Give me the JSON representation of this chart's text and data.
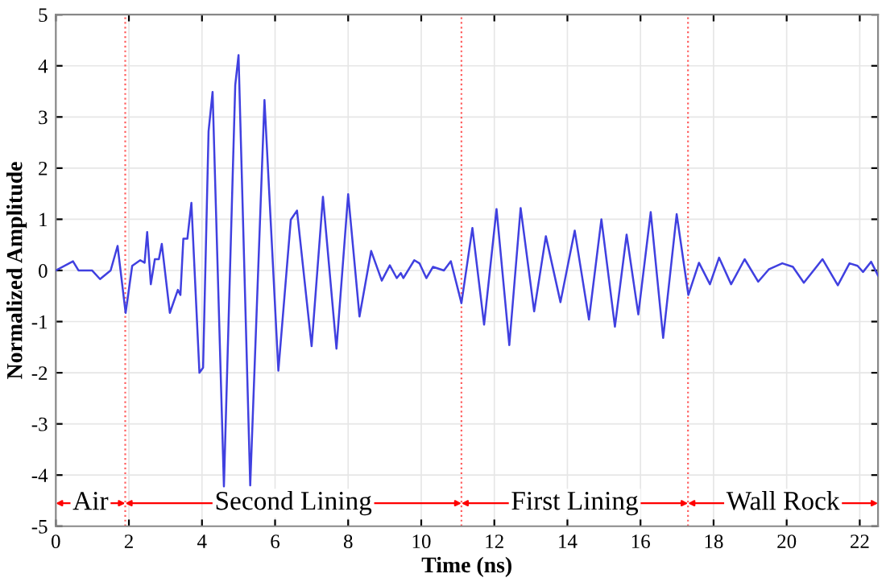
{
  "chart_data": {
    "type": "line",
    "xlabel": "Time (ns)",
    "ylabel": "Normalized Amplitude",
    "xlim": [
      0,
      22.5
    ],
    "ylim": [
      -5,
      5
    ],
    "xticks": [
      0,
      2,
      4,
      6,
      8,
      10,
      12,
      14,
      16,
      18,
      20,
      22
    ],
    "yticks": [
      -5,
      -4,
      -3,
      -2,
      -1,
      0,
      1,
      2,
      3,
      4,
      5
    ],
    "grid": true,
    "marker": "none",
    "line_style": "solid",
    "series": [
      {
        "color": "#4040e0",
        "x": [
          0,
          0.47,
          0.62,
          0.99,
          1.21,
          1.5,
          1.69,
          1.91,
          2.09,
          2.31,
          2.43,
          2.5,
          2.6,
          2.71,
          2.82,
          2.9,
          3.12,
          3.34,
          3.41,
          3.49,
          3.6,
          3.71,
          3.93,
          4.03,
          4.18,
          4.29,
          4.6,
          4.91,
          5.0,
          5.32,
          5.71,
          6.09,
          6.43,
          6.6,
          7.0,
          7.31,
          7.68,
          8.0,
          8.31,
          8.63,
          8.92,
          9.14,
          9.33,
          9.44,
          9.51,
          9.81,
          9.95,
          10.14,
          10.32,
          10.62,
          10.81,
          11.1,
          11.4,
          11.72,
          12.06,
          12.41,
          12.72,
          13.09,
          13.41,
          13.81,
          14.2,
          14.59,
          14.93,
          15.3,
          15.62,
          15.94,
          16.28,
          16.62,
          16.99,
          17.31,
          17.6,
          17.9,
          18.15,
          18.48,
          18.85,
          19.22,
          19.51,
          19.88,
          20.17,
          20.47,
          20.98,
          21.4,
          21.72,
          21.94,
          22.09,
          22.31,
          22.5
        ],
        "values": [
          0,
          0.18,
          0,
          0,
          -0.17,
          0,
          0.48,
          -0.83,
          0.09,
          0.2,
          0.15,
          0.75,
          -0.27,
          0.22,
          0.22,
          0.52,
          -0.83,
          -0.38,
          -0.48,
          0.62,
          0.62,
          1.32,
          -2.0,
          -1.9,
          2.72,
          3.49,
          -4.22,
          3.62,
          4.21,
          -4.2,
          3.33,
          -1.96,
          0.99,
          1.17,
          -1.48,
          1.44,
          -1.53,
          1.49,
          -0.9,
          0.38,
          -0.2,
          0.1,
          -0.15,
          -0.05,
          -0.15,
          0.2,
          0.14,
          -0.15,
          0.07,
          0,
          0.18,
          -0.64,
          0.83,
          -1.06,
          1.2,
          -1.46,
          1.22,
          -0.8,
          0.67,
          -0.62,
          0.78,
          -0.96,
          1.0,
          -1.1,
          0.7,
          -0.86,
          1.14,
          -1.32,
          1.1,
          -0.48,
          0.15,
          -0.27,
          0.25,
          -0.27,
          0.22,
          -0.22,
          0.02,
          0.14,
          0.07,
          -0.24,
          0.22,
          -0.29,
          0.14,
          0.09,
          -0.03,
          0.17,
          -0.1
        ]
      }
    ],
    "ref_lines": [
      {
        "axis": "x",
        "value": 1.9,
        "color": "#ff6060",
        "line_style": "dotted"
      },
      {
        "axis": "x",
        "value": 11.1,
        "color": "#ff6060",
        "line_style": "dotted"
      },
      {
        "axis": "x",
        "value": 17.3,
        "color": "#ff6060",
        "line_style": "dotted"
      }
    ],
    "annotations": [
      "Air",
      "Second Lining",
      "First Lining",
      "Wall Rock"
    ]
  }
}
